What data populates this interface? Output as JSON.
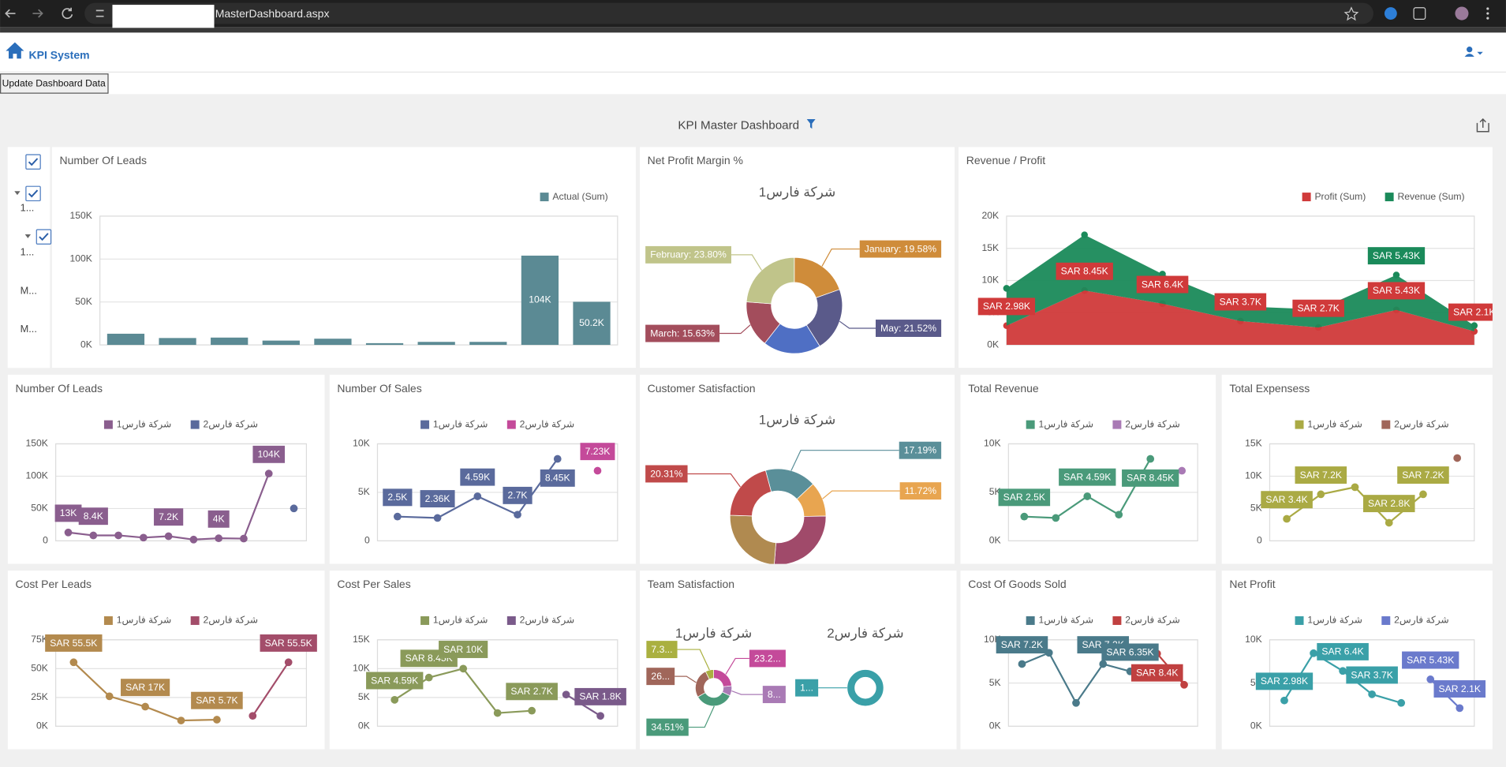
{
  "browser": {
    "url": "MasterDashboard.aspx"
  },
  "header": {
    "app_name": "KPI System",
    "button": "Update Dashboard Data"
  },
  "dashboard": {
    "title": "KPI Master Dashboard"
  },
  "filter": {
    "items": [
      "1...",
      "1...",
      "M...",
      "M..."
    ]
  },
  "chart_data": [
    {
      "type": "bar",
      "title": "Number Of Leads",
      "legend": "top-right",
      "grid": true,
      "categories": [
        null,
        null,
        null,
        null,
        null,
        null,
        null,
        null,
        null,
        null
      ],
      "series": [
        {
          "name": "Actual (Sum)",
          "color": "#5b8a94",
          "values": [
            13000,
            8000,
            8500,
            5000,
            7200,
            2000,
            3500,
            3500,
            104000,
            50200
          ],
          "value_labels": [
            null,
            null,
            null,
            null,
            null,
            null,
            null,
            null,
            "104K",
            "50.2K"
          ]
        }
      ],
      "ylim": [
        0,
        150000
      ],
      "yticks": [
        {
          "value": 0,
          "label": "0K"
        },
        {
          "value": 50000,
          "label": "50K"
        },
        {
          "value": 100000,
          "label": "100K"
        },
        {
          "value": 150000,
          "label": "150K"
        }
      ]
    },
    {
      "type": "pie",
      "title": "Net Profit Margin %",
      "subtitle": "شركة فارس1",
      "values": [
        19.58,
        21.52,
        19.47,
        15.63,
        23.8
      ],
      "colors": [
        "#cf8c3a",
        "#5a5a8a",
        "#4f6fc4",
        "#a34d5c",
        "#c0c48a"
      ],
      "value_labels": [
        "January: 19.58%",
        "May: 21.52%",
        null,
        "March: 15.63%",
        "February: 23.80%"
      ]
    },
    {
      "type": "area",
      "title": "Revenue / Profit",
      "legend": "top-right",
      "stacked": true,
      "grid": true,
      "categories": [
        null,
        null,
        null,
        null,
        null,
        null,
        null
      ],
      "series": [
        {
          "name": "Profit (Sum)",
          "color": "#d03a3a",
          "values": [
            2980,
            8450,
            6400,
            3700,
            2700,
            5430,
            2100
          ],
          "value_labels": [
            "SAR 2.98K",
            "SAR 8.45K",
            "SAR 6.4K",
            "SAR 3.7K",
            "SAR 2.7K",
            "SAR 5.43K",
            "SAR 2.1K"
          ]
        },
        {
          "name": "Revenue (Sum)",
          "color": "#1a8a5a",
          "values": [
            5800,
            8650,
            4600,
            2300,
            2800,
            5430,
            900
          ],
          "value_labels": [
            null,
            null,
            null,
            null,
            null,
            "SAR 5.43K",
            null
          ]
        }
      ],
      "ylim": [
        0,
        20000
      ],
      "yticks": [
        {
          "value": 0,
          "label": "0K"
        },
        {
          "value": 5000,
          "label": "5K"
        },
        {
          "value": 10000,
          "label": "10K"
        },
        {
          "value": 15000,
          "label": "15K"
        },
        {
          "value": 20000,
          "label": "20K"
        }
      ]
    },
    {
      "type": "line",
      "title": "Number Of Leads",
      "legend": "top-center",
      "grid": true,
      "categories": [
        null,
        null,
        null,
        null,
        null,
        null,
        null,
        null,
        null,
        null
      ],
      "series": [
        {
          "name": "شركة فارس1",
          "color": "#8a5e8e",
          "values": [
            13000,
            8400,
            8500,
            5000,
            7200,
            2000,
            4000,
            3500,
            104000,
            null
          ],
          "value_labels": [
            "13K",
            "8.4K",
            null,
            null,
            "7.2K",
            null,
            "4K",
            null,
            "104K",
            null
          ]
        },
        {
          "name": "شركة فارس2",
          "color": "#5a6a9c",
          "values": [
            null,
            null,
            null,
            null,
            null,
            null,
            null,
            null,
            null,
            50200
          ]
        }
      ],
      "ylim": [
        0,
        150000
      ],
      "yticks": [
        0,
        {
          "value": 50000,
          "label": "50K"
        },
        {
          "value": 100000,
          "label": "100K"
        },
        {
          "value": 150000,
          "label": "150K"
        }
      ]
    },
    {
      "type": "line",
      "title": "Number Of Sales",
      "legend": "top-center",
      "grid": true,
      "categories": [
        null,
        null,
        null,
        null,
        null,
        null
      ],
      "series": [
        {
          "name": "شركة فارس1",
          "color": "#5a6a9c",
          "values": [
            2500,
            2360,
            4590,
            2700,
            8450,
            null
          ],
          "value_labels": [
            "2.5K",
            "2.36K",
            "4.59K",
            "2.7K",
            "8.45K",
            null
          ]
        },
        {
          "name": "شركة فارس2",
          "color": "#c44a9a",
          "values": [
            null,
            null,
            null,
            null,
            null,
            7230
          ],
          "value_labels": [
            null,
            null,
            null,
            null,
            null,
            "7.23K"
          ]
        }
      ],
      "ylim": [
        0,
        10000
      ],
      "yticks": [
        0,
        {
          "value": 5000,
          "label": "5K"
        },
        {
          "value": 10000,
          "label": "10K"
        }
      ]
    },
    {
      "type": "pie",
      "title": "Customer Satisfaction",
      "subtitle": "شركة فارس1",
      "values": [
        17.19,
        11.72,
        26.5,
        24.28,
        20.31
      ],
      "colors": [
        "#5a8f99",
        "#e8a550",
        "#a04a6a",
        "#b08a50",
        "#c04a4a"
      ],
      "value_labels": [
        "17.19%",
        "11.72%",
        null,
        null,
        "20.31%"
      ]
    },
    {
      "type": "line",
      "title": "Total Revenue",
      "legend": "top-center",
      "grid": true,
      "categories": [
        null,
        null,
        null,
        null,
        null,
        null
      ],
      "series": [
        {
          "name": "شركة فارس1",
          "color": "#4a9a7a",
          "values": [
            2500,
            2360,
            4590,
            2700,
            8450,
            null
          ],
          "value_labels": [
            "SAR 2.5K",
            null,
            "SAR 4.59K",
            null,
            "SAR 8.45K",
            null
          ]
        },
        {
          "name": "شركة فارس2",
          "color": "#a97ab5",
          "values": [
            null,
            null,
            null,
            null,
            null,
            7230
          ]
        }
      ],
      "ylim": [
        0,
        10000
      ],
      "yticks": [
        {
          "value": 0,
          "label": "0K"
        },
        {
          "value": 5000,
          "label": "5K"
        },
        {
          "value": 10000,
          "label": "10K"
        }
      ]
    },
    {
      "type": "line",
      "title": "Total Expensess",
      "legend": "top-center",
      "grid": true,
      "categories": [
        null,
        null,
        null,
        null,
        null,
        null
      ],
      "series": [
        {
          "name": "شركة فارس1",
          "color": "#aaaa44",
          "values": [
            3400,
            7200,
            8300,
            2800,
            7200,
            null
          ],
          "value_labels": [
            "SAR 3.4K",
            "SAR 7.2K",
            null,
            "SAR 2.8K",
            "SAR 7.2K",
            null
          ]
        },
        {
          "name": "شركة فارس2",
          "color": "#a0665a",
          "values": [
            null,
            null,
            null,
            null,
            null,
            12800
          ]
        }
      ],
      "ylim": [
        0,
        15000
      ],
      "yticks": [
        0,
        {
          "value": 5000,
          "label": "5K"
        },
        {
          "value": 10000,
          "label": "10K"
        },
        {
          "value": 15000,
          "label": "15K"
        }
      ]
    },
    {
      "type": "line",
      "title": "Cost Per Leads",
      "legend": "top-center",
      "grid": true,
      "categories": [
        null,
        null,
        null,
        null,
        null,
        null,
        null
      ],
      "series": [
        {
          "name": "شركة فارس1",
          "color": "#b38a4e",
          "values": [
            55500,
            26000,
            17000,
            5000,
            5700,
            null,
            null
          ],
          "value_labels": [
            "SAR 55.5K",
            null,
            "SAR 17K",
            null,
            "SAR 5.7K",
            null,
            null
          ]
        },
        {
          "name": "شركة فارس2",
          "color": "#a34d6a",
          "values": [
            null,
            null,
            null,
            null,
            null,
            9000,
            55500
          ],
          "value_labels": [
            null,
            null,
            null,
            null,
            null,
            null,
            "SAR 55.5K"
          ]
        }
      ],
      "ylim": [
        0,
        75000
      ],
      "yticks": [
        {
          "value": 0,
          "label": "0K"
        },
        {
          "value": 25000,
          "label": "25K"
        },
        {
          "value": 50000,
          "label": "50K"
        },
        {
          "value": 75000,
          "label": "75K"
        }
      ]
    },
    {
      "type": "line",
      "title": "Cost Per Sales",
      "legend": "top-center",
      "grid": true,
      "categories": [
        null,
        null,
        null,
        null,
        null,
        null,
        null
      ],
      "series": [
        {
          "name": "شركة فارس1",
          "color": "#8a9a5a",
          "values": [
            4590,
            8450,
            10000,
            2300,
            2700,
            null,
            null
          ],
          "value_labels": [
            "SAR 4.59K",
            "SAR 8.45K",
            "SAR 10K",
            null,
            "SAR 2.7K",
            null,
            null
          ]
        },
        {
          "name": "شركة فارس2",
          "color": "#7a5a8a",
          "values": [
            null,
            null,
            null,
            null,
            null,
            5500,
            1800
          ],
          "value_labels": [
            null,
            null,
            null,
            null,
            null,
            null,
            "SAR 1.8K"
          ]
        }
      ],
      "ylim": [
        0,
        15000
      ],
      "yticks": [
        {
          "value": 0,
          "label": "0K"
        },
        {
          "value": 5000,
          "label": "5K"
        },
        {
          "value": 10000,
          "label": "10K"
        },
        {
          "value": 15000,
          "label": "15K"
        }
      ]
    },
    {
      "type": "donuts",
      "title": "Team Satisfaction",
      "pies": [
        {
          "subtitle": "شركة فارس1",
          "values": [
            23.2,
            8.99,
            34.51,
            26,
            7.3
          ],
          "colors": [
            "#c44a9a",
            "#a97ab5",
            "#4a9a7a",
            "#a0665a",
            "#aab040"
          ],
          "value_labels": [
            "23.2...",
            "8...",
            "34.51%",
            "26...",
            "7.3..."
          ]
        },
        {
          "subtitle": "شركة فارس2",
          "values": [
            100
          ],
          "colors": [
            "#3aa0a8"
          ],
          "value_labels": [
            "1..."
          ]
        }
      ]
    },
    {
      "type": "line",
      "title": "Cost Of Goods Sold",
      "legend": "top-center",
      "grid": true,
      "categories": [
        null,
        null,
        null,
        null,
        null,
        null,
        null
      ],
      "series": [
        {
          "name": "شركة فارس1",
          "color": "#4a7a8a",
          "values": [
            7200,
            8500,
            2700,
            7200,
            6350,
            null,
            null
          ],
          "value_labels": [
            "SAR 7.2K",
            null,
            null,
            "SAR 7.2K",
            "SAR 6.35K",
            null,
            null
          ]
        },
        {
          "name": "شركة فارس2",
          "color": "#c04040",
          "values": [
            null,
            null,
            null,
            null,
            null,
            8400,
            4800
          ],
          "value_labels": [
            null,
            null,
            null,
            null,
            null,
            "SAR 8.4K",
            null
          ]
        }
      ],
      "ylim": [
        0,
        10000
      ],
      "yticks": [
        {
          "value": 0,
          "label": "0K"
        },
        {
          "value": 5000,
          "label": "5K"
        },
        {
          "value": 10000,
          "label": "10K"
        }
      ]
    },
    {
      "type": "line",
      "title": "Net Profit",
      "legend": "top-center",
      "grid": true,
      "categories": [
        null,
        null,
        null,
        null,
        null,
        null,
        null
      ],
      "series": [
        {
          "name": "شركة فارس1",
          "color": "#3aa0a8",
          "values": [
            2980,
            8450,
            6400,
            3700,
            2700,
            null,
            null
          ],
          "value_labels": [
            "SAR 2.98K",
            null,
            "SAR 6.4K",
            "SAR 3.7K",
            null,
            null,
            null
          ]
        },
        {
          "name": "شركة فارس2",
          "color": "#6a7acc",
          "values": [
            null,
            null,
            null,
            null,
            null,
            5430,
            2100
          ],
          "value_labels": [
            null,
            null,
            null,
            null,
            null,
            "SAR 5.43K",
            "SAR 2.1K"
          ]
        }
      ],
      "ylim": [
        0,
        10000
      ],
      "yticks": [
        {
          "value": 0,
          "label": "0K"
        },
        {
          "value": 5000,
          "label": "5K"
        },
        {
          "value": 10000,
          "label": "10K"
        }
      ]
    }
  ]
}
